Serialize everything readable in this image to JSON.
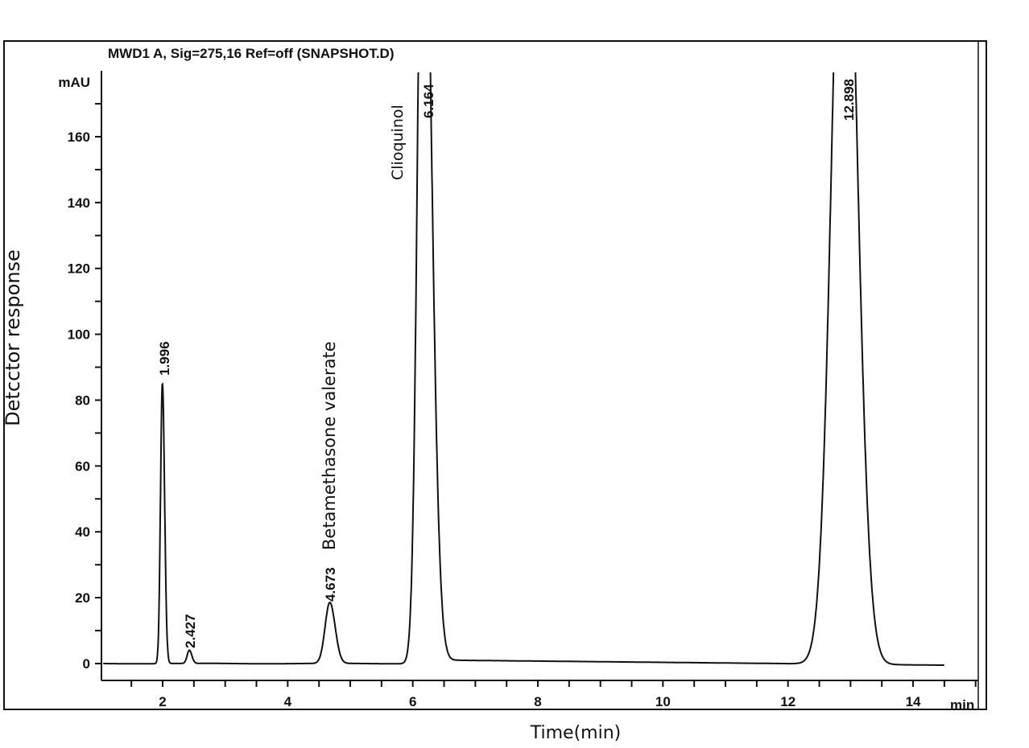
{
  "chart_data": {
    "type": "line",
    "title": "MWD1 A, Sig=275,16 Ref=off (SNAPSHOT.D)",
    "xlabel": "Time(min)",
    "ylabel": "Detcctor response",
    "x_unit": "min",
    "y_unit": "mAU",
    "xlim": [
      1.05,
      15.05
    ],
    "ylim": [
      -5.5,
      180
    ],
    "x_ticks": [
      2,
      4,
      6,
      8,
      10,
      12,
      14
    ],
    "y_ticks": [
      0,
      20,
      40,
      60,
      80,
      100,
      120,
      140,
      160
    ],
    "grid": false,
    "data_end_min": 14.5,
    "peaks": [
      {
        "rt": 1.996,
        "rt_label": "1.996",
        "height": 85,
        "sigma_left": 0.03,
        "sigma_right": 0.035,
        "compound": ""
      },
      {
        "rt": 2.427,
        "rt_label": "2.427",
        "height": 4,
        "sigma_left": 0.035,
        "sigma_right": 0.04,
        "compound": ""
      },
      {
        "rt": 4.673,
        "rt_label": "4.673",
        "height": 18.5,
        "sigma_left": 0.075,
        "sigma_right": 0.085,
        "compound": "Betamethasone valerate"
      },
      {
        "rt": 6.164,
        "rt_label": "6.164",
        "height": 270,
        "sigma_left": 0.085,
        "sigma_right": 0.13,
        "compound": "Clioquinol"
      },
      {
        "rt": 12.898,
        "rt_label": "12.898",
        "height": 270,
        "sigma_left": 0.19,
        "sigma_right": 0.2,
        "compound": ""
      }
    ]
  }
}
